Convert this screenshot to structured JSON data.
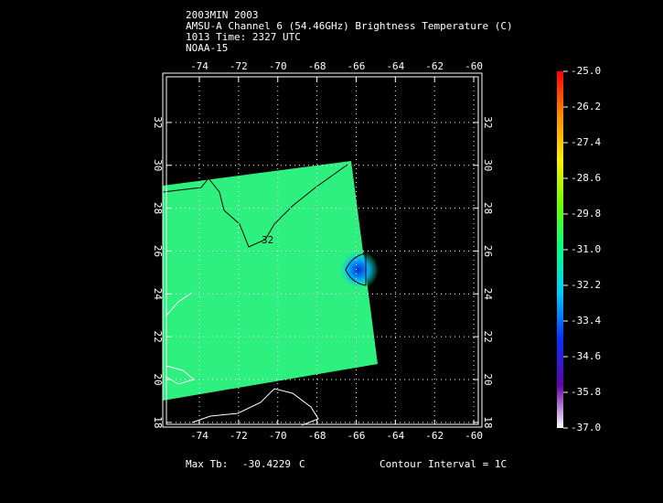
{
  "header": {
    "lines": [
      "2003MIN 2003",
      "AMSU-A Channel 6 (54.46GHz) Brightness Temperature (C)",
      "1013 Time: 2327 UTC",
      "NOAA-15"
    ]
  },
  "map": {
    "xlim": [
      -75.68,
      -59.77
    ],
    "ylim": [
      17.91,
      34.13
    ],
    "xticks": [
      -74,
      -72,
      -70,
      -68,
      -66,
      -64,
      -62,
      -60
    ],
    "yticks": [
      18,
      20,
      22,
      24,
      26,
      28,
      30,
      32
    ],
    "grid": true,
    "contour_label": "32"
  },
  "colorbar": {
    "ylim": [
      -37,
      -25
    ],
    "yticks": [
      {
        "value": -25,
        "label": "-25.0"
      },
      {
        "value": -26.2,
        "label": "-26.2"
      },
      {
        "value": -27.4,
        "label": "-27.4"
      },
      {
        "value": -28.6,
        "label": "-28.6"
      },
      {
        "value": -29.8,
        "label": "-29.8"
      },
      {
        "value": -31,
        "label": "-31.0"
      },
      {
        "value": -32.2,
        "label": "-32.2"
      },
      {
        "value": -33.4,
        "label": "-33.4"
      },
      {
        "value": -34.6,
        "label": "-34.6"
      },
      {
        "value": -35.8,
        "label": "-35.8"
      },
      {
        "value": -37,
        "label": "-37.0"
      }
    ]
  },
  "footer": {
    "max_label": "Max Tb:",
    "max_value": -30.4229,
    "unit": "C",
    "contour_interval": "Contour Interval = 1C"
  }
}
